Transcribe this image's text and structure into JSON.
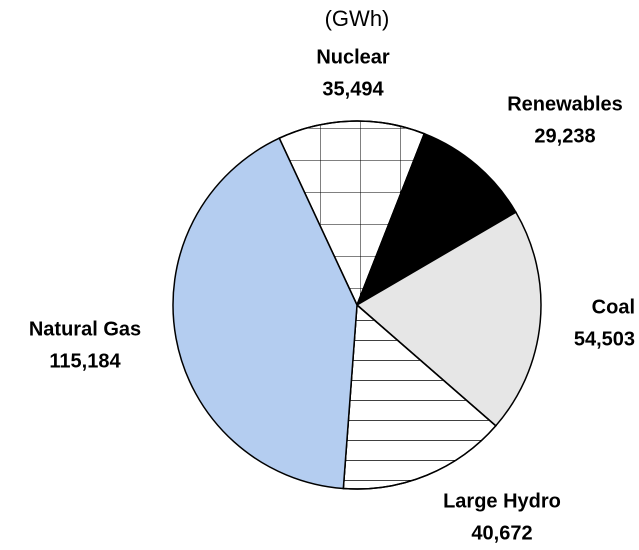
{
  "chart_data": {
    "type": "pie",
    "title": "(GWh)",
    "categories": [
      "Nuclear",
      "Renewables",
      "Coal",
      "Large Hydro",
      "Natural Gas"
    ],
    "values": [
      35494,
      29238,
      54503,
      40672,
      115184
    ],
    "value_labels": [
      "35,494",
      "29,238",
      "54,503",
      "40,672",
      "115,184"
    ],
    "colors": [
      "#ffffff",
      "#000000",
      "#e6e6e6",
      "#ffffff",
      "#b4cdf0"
    ],
    "patterns": [
      "grid",
      null,
      null,
      "horizontal",
      null
    ]
  }
}
